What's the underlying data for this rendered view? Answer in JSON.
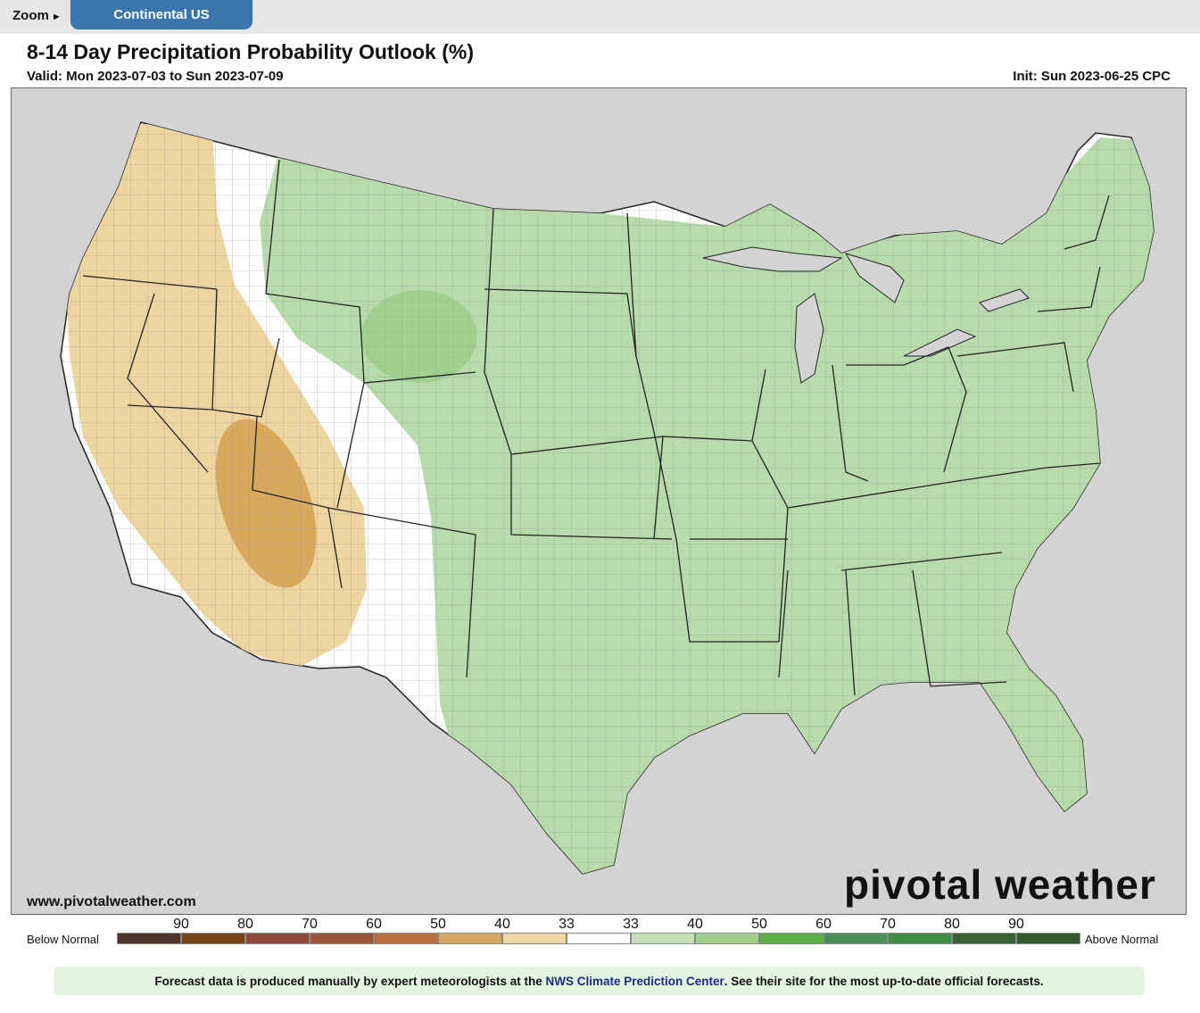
{
  "toolbar": {
    "zoom_label": "Zoom",
    "zoom_arrow": "►",
    "region_button": "Continental US"
  },
  "header": {
    "title": "8-14 Day Precipitation Probability Outlook (%)",
    "valid": "Valid: Mon 2023-07-03 to Sun 2023-07-09",
    "init": "Init: Sun 2023-06-25 CPC"
  },
  "map": {
    "region": "Continental US",
    "watermark_url": "www.pivotalweather.com",
    "logo_text": "pivotal weather",
    "colors": {
      "land": "#ffffff",
      "ocean_neighbors": "#d3d3d3",
      "border": "#222222",
      "county": "#9a9a9a"
    },
    "outlook_areas": [
      {
        "category": "Below Normal",
        "level": "33-40",
        "color": "#eed49e",
        "region": "West Coast and Great Basin"
      },
      {
        "category": "Below Normal",
        "level": "40-50",
        "color": "#d8a95d",
        "region": "Southern Nevada / Utah / Arizona"
      },
      {
        "category": "Above Normal",
        "level": "33-40",
        "color": "#b8dbab",
        "region": "Northern Rockies, Plains, Midwest, South and East"
      },
      {
        "category": "Above Normal",
        "level": "40-50",
        "color": "#9fd08e",
        "region": "Wyoming"
      }
    ]
  },
  "legend": {
    "below_label": "Below Normal",
    "above_label": "Above Normal",
    "tick_labels": [
      "90",
      "80",
      "70",
      "60",
      "50",
      "40",
      "33",
      "33",
      "40",
      "50",
      "60",
      "70",
      "80",
      "90"
    ],
    "below_colors": [
      "#4e3527",
      "#7a4419",
      "#8e4a35",
      "#9d5637",
      "#bc6e3a",
      "#d7a764",
      "#efd7a3"
    ],
    "near_normal_color": "#ffffff",
    "above_colors": [
      "#c2dfb6",
      "#9fd08e",
      "#58b045",
      "#4b8f5a",
      "#3f8d44",
      "#3b6135",
      "#365b2a"
    ]
  },
  "footer": {
    "before": "Forecast data is produced manually by expert meteorologists at the ",
    "link": "NWS Climate Prediction Center",
    "after": ". See their site for the most up-to-date official forecasts."
  }
}
